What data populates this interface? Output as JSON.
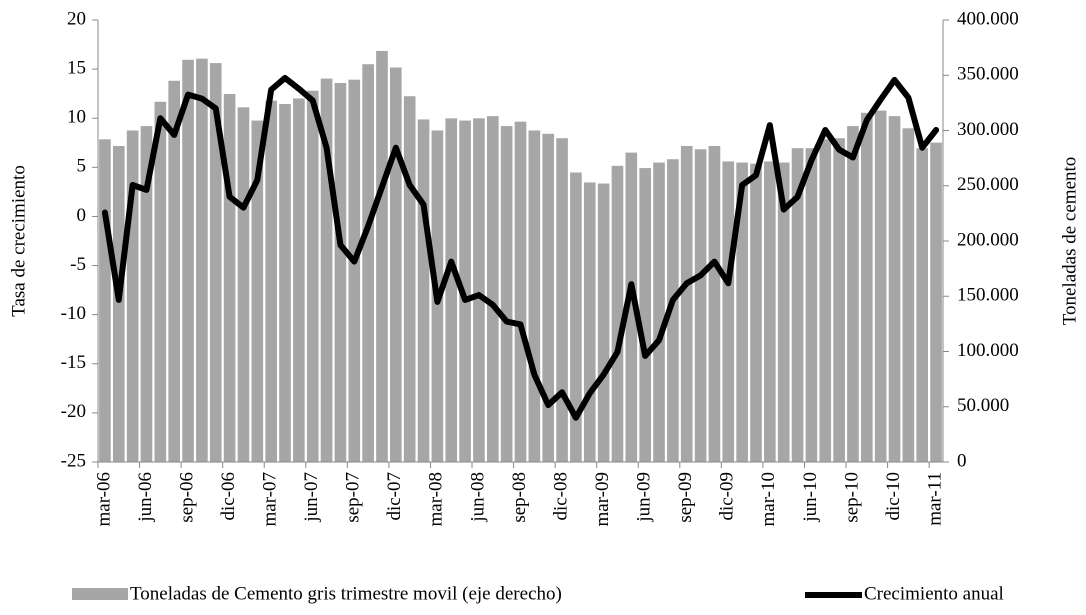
{
  "chart_data": {
    "type": "bar_line",
    "y_label": "Tasa de crecimiento",
    "y2_label": "Toneladas de cemento",
    "categories": [
      "mar-06",
      null,
      null,
      "jun-06",
      null,
      null,
      "sep-06",
      null,
      null,
      "dic-06",
      null,
      null,
      "mar-07",
      null,
      null,
      "jun-07",
      null,
      null,
      "sep-07",
      null,
      null,
      "dic-07",
      null,
      null,
      "mar-08",
      null,
      null,
      "jun-08",
      null,
      null,
      "sep-08",
      null,
      null,
      "dic-08",
      null,
      null,
      "mar-09",
      null,
      null,
      "jun-09",
      null,
      null,
      "sep-09",
      null,
      null,
      "dic-09",
      null,
      null,
      "mar-10",
      null,
      null,
      "jun-10",
      null,
      null,
      "sep-10",
      null,
      null,
      "dic-10",
      null,
      null,
      "mar-11"
    ],
    "series": [
      {
        "name": "Toneladas de Cemento gris trimestre movil (eje derecho)",
        "type": "bar",
        "axis": "y2",
        "color": "#a6a6a6",
        "values": [
          292000,
          286000,
          300000,
          304000,
          326000,
          345000,
          364000,
          365000,
          361000,
          333000,
          321000,
          309000,
          327000,
          324000,
          329000,
          336000,
          347000,
          343000,
          346000,
          360000,
          372000,
          357000,
          331000,
          310000,
          300000,
          311000,
          309000,
          311000,
          313000,
          304000,
          308000,
          300000,
          297000,
          293000,
          262000,
          253000,
          252000,
          268000,
          280000,
          266000,
          271000,
          274000,
          286000,
          283000,
          286000,
          272000,
          271000,
          270000,
          272000,
          271000,
          284000,
          284000,
          292000,
          293000,
          304000,
          316000,
          318000,
          313000,
          302000,
          284000,
          289000
        ]
      },
      {
        "name": "Crecimiento anual",
        "type": "line",
        "color": "#000000",
        "values": [
          0.4,
          -8.5,
          3.2,
          2.7,
          10,
          8.3,
          12.4,
          12,
          11,
          2,
          0.9,
          3.7,
          12.9,
          14.1,
          13,
          11.8,
          7,
          -2.9,
          -4.6,
          -1,
          3,
          7,
          3.2,
          1.2,
          -8.7,
          -4.6,
          -8.5,
          -8,
          -9,
          -10.7,
          -11,
          -16.1,
          -19.2,
          -17.9,
          -20.5,
          -18,
          -16.1,
          -13.8,
          -6.9,
          -14.2,
          -12.6,
          -8.5,
          -6.8,
          -6,
          -4.6,
          -6.8,
          3.2,
          4.2,
          9.3,
          0.7,
          2,
          5.7,
          8.8,
          6.8,
          6,
          9.8,
          11.9,
          13.9,
          12.1,
          7,
          8.8
        ]
      }
    ],
    "ylim": [
      -25,
      20
    ],
    "yticks": [
      -25,
      -20,
      -15,
      -10,
      -5,
      0,
      5,
      10,
      15,
      20
    ],
    "y2lim": [
      0,
      400000
    ],
    "y2ticks": [
      0,
      {
        "value": 50000,
        "label": "50.000"
      },
      {
        "value": 100000,
        "label": "100.000"
      },
      {
        "value": 150000,
        "label": "150.000"
      },
      {
        "value": 200000,
        "label": "200.000"
      },
      {
        "value": 250000,
        "label": "250.000"
      },
      {
        "value": 300000,
        "label": "300.000"
      },
      {
        "value": 350000,
        "label": "350.000"
      },
      {
        "value": 400000,
        "label": "400.000"
      }
    ],
    "legend": "bottom"
  }
}
